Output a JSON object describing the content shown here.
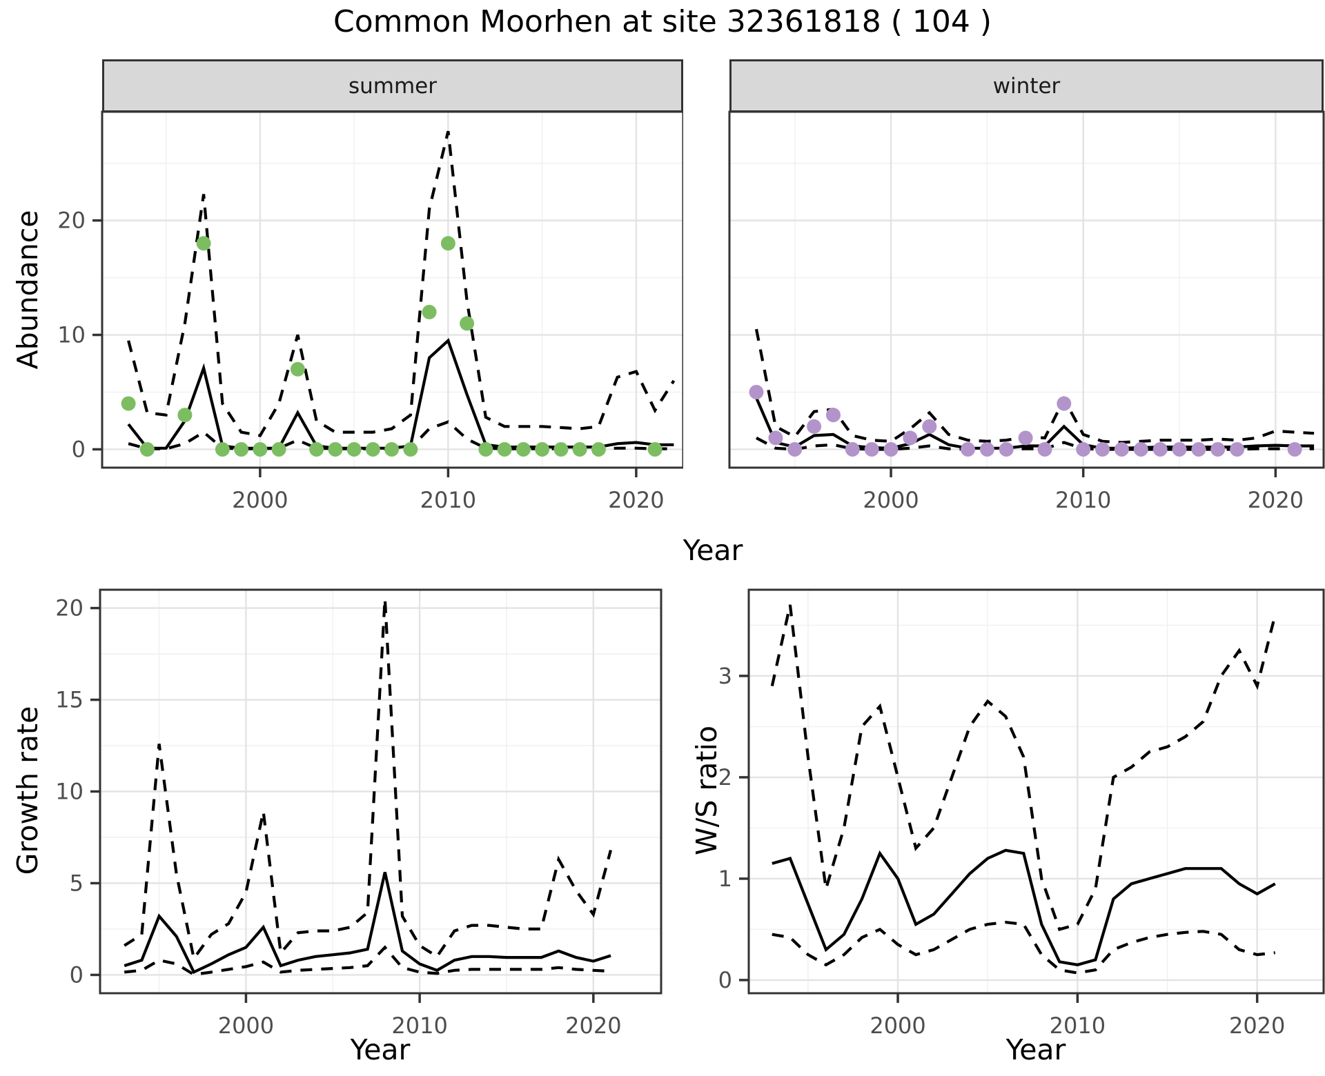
{
  "title": "Common Moorhen at site 32361818 ( 104 )",
  "colors": {
    "summer_point": "#7cbd62",
    "winter_point": "#b294cb",
    "line": "#000000",
    "grid_major": "#e3e3e3",
    "grid_minor": "#f1f1f1",
    "panel_border": "#333333",
    "strip_bg": "#d8d8d8",
    "tick_text": "#4d4d4d"
  },
  "chart_data": [
    {
      "id": "abundance-summer",
      "type": "line",
      "facet": "summer",
      "ylabel": "Abundance",
      "xlabel": "Year",
      "xlim": [
        1991.6,
        2022.5
      ],
      "ylim": [
        -1.6,
        29.5
      ],
      "xticks": [
        2000,
        2010,
        2020
      ],
      "xminor": [
        1995,
        2005,
        2015
      ],
      "yticks": [
        0,
        10,
        20
      ],
      "yminor": [
        5,
        15,
        25
      ],
      "years": [
        1993,
        1994,
        1995,
        1996,
        1997,
        1998,
        1999,
        2000,
        2001,
        2002,
        2003,
        2004,
        2005,
        2006,
        2007,
        2008,
        2009,
        2010,
        2011,
        2012,
        2013,
        2014,
        2015,
        2016,
        2017,
        2018,
        2019,
        2020,
        2021,
        2022
      ],
      "mean": [
        2.2,
        0.1,
        0.1,
        2.5,
        7.1,
        0.3,
        0.1,
        0.1,
        0.1,
        3.2,
        0.3,
        0.1,
        0.1,
        0.1,
        0.1,
        0.3,
        8.0,
        9.5,
        4.8,
        0.4,
        0.2,
        0.2,
        0.2,
        0.2,
        0.2,
        0.2,
        0.5,
        0.6,
        0.4,
        0.4
      ],
      "upper": [
        9.5,
        3.2,
        3.0,
        11,
        22.3,
        4.0,
        1.5,
        1.2,
        4.0,
        10.0,
        2.5,
        1.5,
        1.5,
        1.5,
        1.8,
        3.0,
        21,
        27.8,
        13,
        2.8,
        2.0,
        2.0,
        2.0,
        1.9,
        1.8,
        2.0,
        6.3,
        6.8,
        3.4,
        6.0
      ],
      "lower": [
        0.5,
        0.05,
        0.05,
        0.5,
        1.5,
        0.1,
        0.05,
        0.05,
        0.1,
        0.8,
        0.1,
        0.05,
        0.05,
        0.05,
        0.05,
        0.1,
        1.8,
        2.4,
        0.9,
        0.1,
        0.05,
        0.05,
        0.05,
        0.05,
        0.05,
        0.05,
        0.1,
        0.1,
        0.05,
        0.05
      ],
      "points": {
        "color": "#7cbd62",
        "years": [
          1993,
          1994,
          1996,
          1997,
          1998,
          1999,
          2000,
          2001,
          2002,
          2003,
          2004,
          2005,
          2006,
          2007,
          2008,
          2009,
          2010,
          2011,
          2012,
          2013,
          2014,
          2015,
          2016,
          2017,
          2018,
          2021
        ],
        "values": [
          4,
          0,
          3,
          18,
          0,
          0,
          0,
          0,
          7,
          0,
          0,
          0,
          0,
          0,
          0,
          12,
          18,
          11,
          0,
          0,
          0,
          0,
          0,
          0,
          0,
          0
        ]
      }
    },
    {
      "id": "abundance-winter",
      "type": "line",
      "facet": "winter",
      "ylabel": "Abundance",
      "xlabel": "Year",
      "xlim": [
        1991.6,
        2022.5
      ],
      "ylim": [
        -1.6,
        29.5
      ],
      "xticks": [
        2000,
        2010,
        2020
      ],
      "xminor": [
        1995,
        2005,
        2015
      ],
      "yticks": [
        0,
        10,
        20
      ],
      "yminor": [
        5,
        15,
        25
      ],
      "years": [
        1993,
        1994,
        1995,
        1996,
        1997,
        1998,
        1999,
        2000,
        2001,
        2002,
        2003,
        2004,
        2005,
        2006,
        2007,
        2008,
        2009,
        2010,
        2011,
        2012,
        2013,
        2014,
        2015,
        2016,
        2017,
        2018,
        2019,
        2020,
        2021,
        2022
      ],
      "mean": [
        4.5,
        0.6,
        0.2,
        1.2,
        1.3,
        0.3,
        0.15,
        0.1,
        0.5,
        1.3,
        0.4,
        0.1,
        0.1,
        0.1,
        0.3,
        0.3,
        2.0,
        0.4,
        0.1,
        0.1,
        0.15,
        0.2,
        0.2,
        0.2,
        0.2,
        0.2,
        0.3,
        0.35,
        0.3,
        0.3
      ],
      "upper": [
        10.5,
        2.0,
        1.1,
        3.3,
        3.5,
        1.2,
        0.8,
        0.7,
        1.8,
        3.2,
        1.3,
        0.8,
        0.7,
        0.8,
        1.1,
        1.0,
        4.4,
        1.3,
        0.7,
        0.6,
        0.7,
        0.8,
        0.8,
        0.8,
        0.9,
        0.8,
        1.0,
        1.6,
        1.5,
        1.4
      ],
      "lower": [
        1.0,
        0.1,
        0,
        0.3,
        0.4,
        0.05,
        0,
        0,
        0.1,
        0.3,
        0.05,
        0,
        0,
        0,
        0.05,
        0.05,
        0.6,
        0.05,
        0,
        0,
        0,
        0,
        0,
        0,
        0,
        0,
        0.05,
        0.05,
        0.05,
        0.05
      ],
      "points": {
        "color": "#b294cb",
        "years": [
          1993,
          1994,
          1995,
          1996,
          1997,
          1998,
          1999,
          2000,
          2001,
          2002,
          2004,
          2005,
          2006,
          2007,
          2008,
          2009,
          2010,
          2011,
          2012,
          2013,
          2014,
          2015,
          2016,
          2017,
          2018,
          2021
        ],
        "values": [
          5,
          1,
          0,
          2,
          3,
          0,
          0,
          0,
          1,
          2,
          0,
          0,
          0,
          1,
          0,
          4,
          0,
          0,
          0,
          0,
          0,
          0,
          0,
          0,
          0,
          0
        ]
      }
    },
    {
      "id": "growth-rate",
      "type": "line",
      "ylabel": "Growth rate",
      "xlabel": "Year",
      "xlim": [
        1991.6,
        2023.9
      ],
      "ylim": [
        -1.0,
        21.0
      ],
      "xticks": [
        2000,
        2010,
        2020
      ],
      "xminor": [
        1995,
        2005,
        2015
      ],
      "yticks": [
        0,
        5,
        10,
        15,
        20
      ],
      "yminor": [
        2.5,
        7.5,
        12.5,
        17.5
      ],
      "years": [
        1993,
        1994,
        1995,
        1996,
        1997,
        1998,
        1999,
        2000,
        2001,
        2002,
        2003,
        2004,
        2005,
        2006,
        2007,
        2008,
        2009,
        2010,
        2011,
        2012,
        2013,
        2014,
        2015,
        2016,
        2017,
        2018,
        2019,
        2020,
        2021
      ],
      "mean": [
        0.5,
        0.8,
        3.2,
        2.1,
        0.15,
        0.6,
        1.1,
        1.5,
        2.6,
        0.5,
        0.8,
        1.0,
        1.1,
        1.2,
        1.4,
        5.6,
        1.3,
        0.6,
        0.25,
        0.8,
        1.0,
        1.0,
        0.95,
        0.95,
        0.95,
        1.3,
        0.95,
        0.75,
        1.05
      ],
      "upper": [
        1.6,
        2.2,
        12.6,
        5.5,
        0.9,
        2.2,
        2.8,
        4.5,
        8.9,
        1.2,
        2.3,
        2.4,
        2.4,
        2.6,
        3.4,
        20.5,
        3.2,
        1.6,
        1.0,
        2.4,
        2.7,
        2.7,
        2.6,
        2.5,
        2.5,
        6.3,
        4.6,
        3.3,
        6.8
      ],
      "lower": [
        0.15,
        0.25,
        0.8,
        0.6,
        0.02,
        0.15,
        0.3,
        0.45,
        0.7,
        0.15,
        0.25,
        0.3,
        0.35,
        0.4,
        0.5,
        1.5,
        0.4,
        0.15,
        0.08,
        0.25,
        0.3,
        0.3,
        0.3,
        0.3,
        0.3,
        0.4,
        0.3,
        0.25,
        0.2
      ],
      "points": {
        "color": "#000000",
        "years": [],
        "values": []
      }
    },
    {
      "id": "ws-ratio",
      "type": "line",
      "ylabel": "W/S ratio",
      "xlabel": "Year",
      "xlim": [
        1991.7,
        2023.7
      ],
      "ylim": [
        -0.13,
        3.85
      ],
      "xticks": [
        2000,
        2010,
        2020
      ],
      "xminor": [
        1995,
        2005,
        2015
      ],
      "yticks": [
        0,
        1,
        2,
        3
      ],
      "yminor": [
        0.5,
        1.5,
        2.5,
        3.5
      ],
      "years": [
        1993,
        1994,
        1995,
        1996,
        1997,
        1998,
        1999,
        2000,
        2001,
        2002,
        2003,
        2004,
        2005,
        2006,
        2007,
        2008,
        2009,
        2010,
        2011,
        2012,
        2013,
        2014,
        2015,
        2016,
        2017,
        2018,
        2019,
        2020,
        2021
      ],
      "mean": [
        1.15,
        1.2,
        0.75,
        0.3,
        0.45,
        0.8,
        1.25,
        1.0,
        0.55,
        0.65,
        0.85,
        1.05,
        1.2,
        1.28,
        1.25,
        0.55,
        0.18,
        0.15,
        0.2,
        0.8,
        0.95,
        1.0,
        1.05,
        1.1,
        1.1,
        1.1,
        0.95,
        0.85,
        0.95
      ],
      "upper": [
        2.9,
        3.7,
        2.2,
        0.9,
        1.5,
        2.5,
        2.7,
        2.0,
        1.3,
        1.5,
        2.0,
        2.5,
        2.75,
        2.6,
        2.2,
        1.0,
        0.5,
        0.55,
        0.9,
        2.0,
        2.1,
        2.25,
        2.3,
        2.4,
        2.55,
        3.0,
        3.25,
        2.9,
        3.6
      ],
      "lower": [
        0.45,
        0.42,
        0.25,
        0.15,
        0.25,
        0.42,
        0.5,
        0.35,
        0.25,
        0.3,
        0.4,
        0.5,
        0.55,
        0.57,
        0.55,
        0.25,
        0.1,
        0.07,
        0.1,
        0.3,
        0.37,
        0.42,
        0.45,
        0.47,
        0.48,
        0.45,
        0.3,
        0.25,
        0.27
      ],
      "points": {
        "color": "#000000",
        "years": [],
        "values": []
      }
    }
  ]
}
